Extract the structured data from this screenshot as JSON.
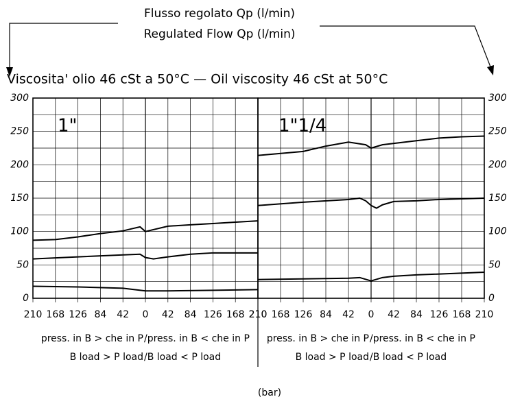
{
  "header": {
    "title_it": "Flusso regolato Qp (l/min)",
    "title_en": "Regulated Flow Qp (l/min)",
    "viscosity": "Viscosita' olio 46 cSt a 50°C — Oil viscosity 46 cSt at 50°C"
  },
  "footer": {
    "unit": "(bar)"
  },
  "chart_data": [
    {
      "type": "line",
      "title": "1\"",
      "color": "#000000",
      "ytick_side": "left",
      "xlim": [
        -210,
        210
      ],
      "ylim": [
        0,
        300
      ],
      "xticks": [
        {
          "value": -210,
          "label": "210"
        },
        {
          "value": -168,
          "label": "168"
        },
        {
          "value": -126,
          "label": "126"
        },
        {
          "value": -84,
          "label": "84"
        },
        {
          "value": -42,
          "label": "42"
        },
        0,
        42,
        84,
        126,
        168,
        210
      ],
      "yticks": [
        0,
        50,
        100,
        150,
        200,
        250,
        300
      ],
      "y_minor_ticks": [
        25,
        75,
        125,
        175,
        225,
        275
      ],
      "grid": true,
      "x_label_left": [
        "press. in B > che in P",
        "B load > P load"
      ],
      "x_label_right": [
        "/press. in B < che in P",
        "/B load < P load"
      ],
      "series": [
        {
          "x": [
            -210,
            -168,
            -126,
            -84,
            -42,
            -21,
            -10,
            0,
            42,
            84,
            126,
            168,
            210
          ],
          "values": [
            87,
            88,
            92,
            97,
            101,
            105,
            107,
            100,
            108,
            110,
            112,
            114,
            116
          ]
        },
        {
          "x": [
            -210,
            -126,
            -42,
            -10,
            0,
            15,
            42,
            84,
            126,
            210
          ],
          "values": [
            59,
            62,
            65,
            66,
            61,
            59,
            62,
            66,
            68,
            68
          ]
        },
        {
          "x": [
            -210,
            -126,
            -42,
            0,
            42,
            126,
            210
          ],
          "values": [
            18,
            17,
            15,
            11,
            11,
            12,
            13
          ]
        }
      ]
    },
    {
      "type": "line",
      "title": "1\"1/4",
      "color": "#000000",
      "ytick_side": "right",
      "xlim": [
        -210,
        210
      ],
      "ylim": [
        0,
        300
      ],
      "xticks": [
        {
          "value": -210,
          "label": "210"
        },
        {
          "value": -168,
          "label": "168"
        },
        {
          "value": -126,
          "label": "126"
        },
        {
          "value": -84,
          "label": "84"
        },
        {
          "value": -42,
          "label": "42"
        },
        0,
        42,
        84,
        126,
        168,
        210
      ],
      "yticks": [
        0,
        50,
        100,
        150,
        200,
        250,
        300
      ],
      "y_minor_ticks": [
        25,
        75,
        125,
        175,
        225,
        275
      ],
      "grid": true,
      "x_label_left": [
        "press. in B > che in P",
        "B load > P load"
      ],
      "x_label_right": [
        "/press. in B < che in P",
        "/B load < P load"
      ],
      "series": [
        {
          "x": [
            -210,
            -126,
            -84,
            -42,
            -10,
            0,
            21,
            84,
            126,
            168,
            210
          ],
          "values": [
            214,
            220,
            228,
            234,
            230,
            225,
            230,
            236,
            240,
            242,
            243
          ]
        },
        {
          "x": [
            -210,
            -126,
            -42,
            -21,
            -10,
            0,
            10,
            21,
            42,
            84,
            126,
            210
          ],
          "values": [
            139,
            144,
            148,
            150,
            146,
            139,
            135,
            140,
            145,
            146,
            148,
            150
          ]
        },
        {
          "x": [
            -210,
            -42,
            -21,
            0,
            21,
            42,
            84,
            210
          ],
          "values": [
            28,
            30,
            31,
            26,
            31,
            33,
            35,
            39
          ]
        }
      ]
    }
  ]
}
